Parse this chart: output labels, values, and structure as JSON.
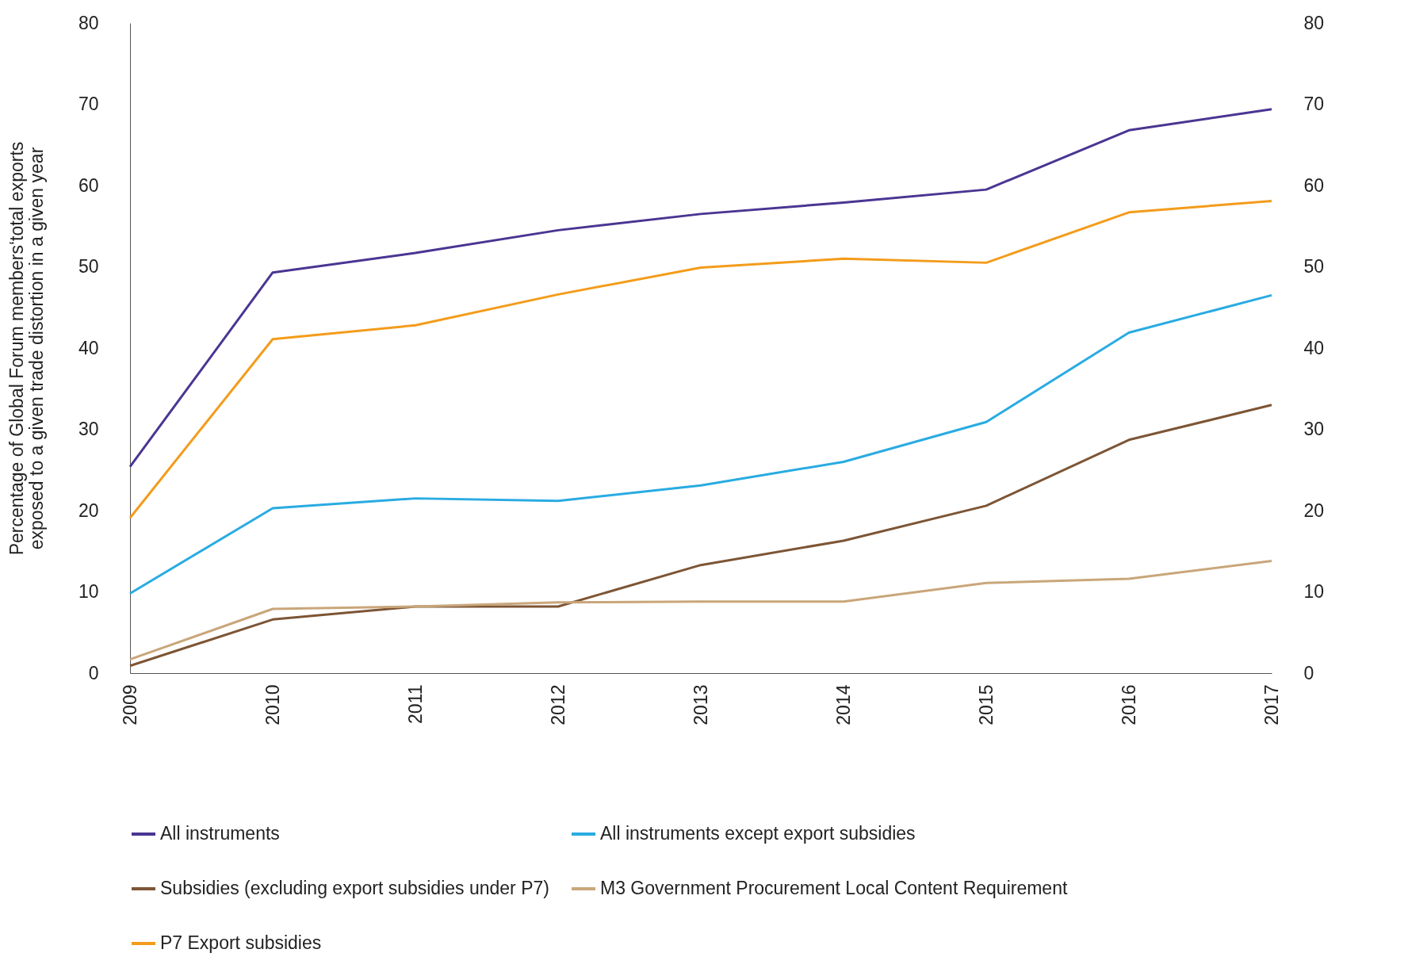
{
  "chart_data": {
    "type": "line",
    "ylabel": "Percentage of Global Forum members‘total exports exposed to a given trade distortion in a given year",
    "categories": [
      "2009",
      "2010",
      "2011",
      "2012",
      "2013",
      "2014",
      "2015",
      "2016",
      "2017"
    ],
    "series": [
      {
        "name": "All instruments",
        "color": "#4a3592",
        "values": [
          25.4,
          49.3,
          51.7,
          54.5,
          56.5,
          57.9,
          59.5,
          66.8,
          69.4
        ]
      },
      {
        "name": "All instruments except export subsidies",
        "color": "#29abe2",
        "values": [
          9.8,
          20.3,
          21.5,
          21.2,
          23.1,
          26.0,
          30.9,
          41.9,
          46.5
        ]
      },
      {
        "name": "Subsidies (excluding export subsidies under P7)",
        "color": "#7d5535",
        "values": [
          0.9,
          6.6,
          8.2,
          8.2,
          13.3,
          16.3,
          20.6,
          28.7,
          33.0
        ]
      },
      {
        "name": "M3 Government Procurement Local Content Requirement",
        "color": "#c9a67a",
        "values": [
          1.7,
          7.9,
          8.2,
          8.7,
          8.8,
          8.8,
          11.1,
          11.6,
          13.8
        ]
      },
      {
        "name": "P7 Export subsidies",
        "color": "#f39c1b",
        "values": [
          19.1,
          41.1,
          42.8,
          46.6,
          49.9,
          51.0,
          50.5,
          56.7,
          58.1
        ]
      }
    ],
    "ylim": [
      0,
      80
    ],
    "yticks": [
      0,
      10,
      20,
      30,
      40,
      50,
      60,
      70,
      80
    ],
    "y2lim": [
      0,
      80
    ],
    "y2ticks": [
      0,
      10,
      20,
      30,
      40,
      50,
      60,
      70,
      80
    ],
    "grid": false,
    "legend": "bottom",
    "marker": "none",
    "line_style": "solid"
  }
}
